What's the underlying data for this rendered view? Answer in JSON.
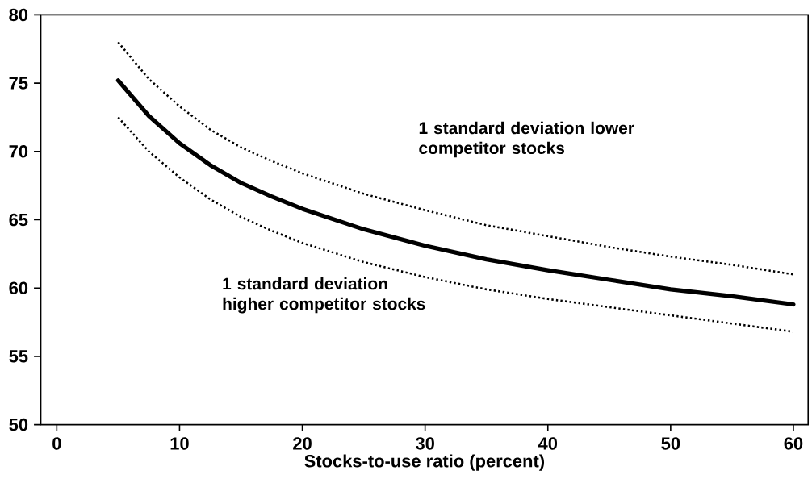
{
  "chart_data": {
    "type": "line",
    "xlabel": "Stocks-to-use ratio (percent)",
    "x": [
      5,
      7.5,
      10,
      12.5,
      15,
      17.5,
      20,
      25,
      30,
      35,
      40,
      45,
      50,
      55,
      60
    ],
    "series": [
      {
        "name": "1 standard deviation lower competitor stocks",
        "color": "#000000",
        "line_style": "dotted",
        "values": [
          78.0,
          75.3,
          73.3,
          71.6,
          70.3,
          69.3,
          68.4,
          66.9,
          65.7,
          64.6,
          63.8,
          63.0,
          62.3,
          61.7,
          61.0
        ]
      },
      {
        "color": "#000000",
        "line_style": "solid",
        "values": [
          75.2,
          72.6,
          70.6,
          69.0,
          67.7,
          66.7,
          65.8,
          64.3,
          63.1,
          62.1,
          61.3,
          60.6,
          59.9,
          59.4,
          58.8
        ]
      },
      {
        "name": "1 standard deviation higher competitor stocks",
        "color": "#000000",
        "line_style": "dotted",
        "values": [
          72.5,
          70.0,
          68.1,
          66.5,
          65.2,
          64.2,
          63.3,
          61.9,
          60.8,
          59.9,
          59.2,
          58.6,
          58.0,
          57.4,
          56.8
        ]
      }
    ],
    "xlim": [
      -1.3,
      61.2
    ],
    "ylim": [
      50,
      80
    ],
    "xticks": [
      0,
      10,
      20,
      30,
      40,
      50,
      60
    ],
    "yticks": [
      50,
      55,
      60,
      65,
      70,
      75,
      80
    ]
  }
}
